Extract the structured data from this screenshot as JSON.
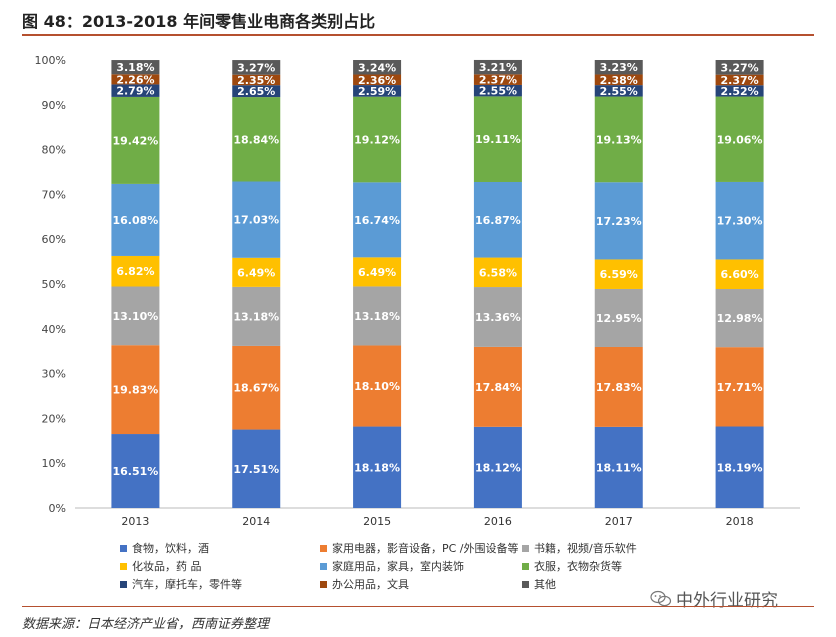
{
  "title": "图 48：2013-2018 年间零售业电商各类别占比",
  "source": "数据来源：日本经济产业省，西南证券整理",
  "watermark": "中外行业研究",
  "chart_data": {
    "type": "bar",
    "stacked": true,
    "categories": [
      "2013",
      "2014",
      "2015",
      "2016",
      "2017",
      "2018"
    ],
    "y_ticks": [
      "0%",
      "10%",
      "20%",
      "30%",
      "40%",
      "50%",
      "60%",
      "70%",
      "80%",
      "90%",
      "100%"
    ],
    "ylim": [
      0,
      100
    ],
    "series": [
      {
        "name": "食物，饮料，酒",
        "color": "#4472c4",
        "label_color": "#ffffff",
        "values": [
          16.51,
          17.51,
          18.18,
          18.12,
          18.11,
          18.19
        ],
        "labels": [
          "16.51%",
          "17.51%",
          "18.18%",
          "18.12%",
          "18.11%",
          "18.19%"
        ]
      },
      {
        "name": "家用电器，影音设备，PC /外围设备等",
        "color": "#ed7d31",
        "label_color": "#ffffff",
        "values": [
          19.83,
          18.67,
          18.1,
          17.84,
          17.83,
          17.71
        ],
        "labels": [
          "19.83%",
          "18.67%",
          "18.10%",
          "17.84%",
          "17.83%",
          "17.71%"
        ]
      },
      {
        "name": "书籍，视频/音乐软件",
        "color": "#a5a5a5",
        "label_color": "#ffffff",
        "values": [
          13.1,
          13.18,
          13.18,
          13.36,
          12.95,
          12.98
        ],
        "labels": [
          "13.10%",
          "13.18%",
          "13.18%",
          "13.36%",
          "12.95%",
          "12.98%"
        ]
      },
      {
        "name": "化妆品，药 品",
        "color": "#ffc000",
        "label_color": "#ffffff",
        "values": [
          6.82,
          6.49,
          6.49,
          6.58,
          6.59,
          6.6
        ],
        "labels": [
          "6.82%",
          "6.49%",
          "6.49%",
          "6.58%",
          "6.59%",
          "6.60%"
        ]
      },
      {
        "name": "家庭用品，家具，室内装饰",
        "color": "#5b9bd5",
        "label_color": "#ffffff",
        "values": [
          16.08,
          17.03,
          16.74,
          16.87,
          17.23,
          17.3
        ],
        "labels": [
          "16.08%",
          "17.03%",
          "16.74%",
          "16.87%",
          "17.23%",
          "17.30%"
        ]
      },
      {
        "name": "衣服，衣物杂货等",
        "color": "#70ad47",
        "label_color": "#ffffff",
        "values": [
          19.42,
          18.84,
          19.12,
          19.11,
          19.13,
          19.06
        ],
        "labels": [
          "19.42%",
          "18.84%",
          "19.12%",
          "19.11%",
          "19.13%",
          "19.06%"
        ]
      },
      {
        "name": "汽车，摩托车，零件等",
        "color": "#264478",
        "label_color": "#ffffff",
        "values": [
          2.79,
          2.65,
          2.59,
          2.55,
          2.55,
          2.52
        ],
        "labels": [
          "2.79%",
          "2.65%",
          "2.59%",
          "2.55%",
          "2.55%",
          "2.52%"
        ]
      },
      {
        "name": "办公用品，文具",
        "color": "#9e480e",
        "label_color": "#ffffff",
        "values": [
          2.26,
          2.35,
          2.36,
          2.37,
          2.38,
          2.37
        ],
        "labels": [
          "2.26%",
          "2.35%",
          "2.36%",
          "2.37%",
          "2.38%",
          "2.37%"
        ]
      },
      {
        "name": "其他",
        "color": "#595959",
        "label_color": "#ffffff",
        "values": [
          3.18,
          3.27,
          3.24,
          3.21,
          3.23,
          3.27
        ],
        "labels": [
          "3.18%",
          "3.27%",
          "3.24%",
          "3.21%",
          "3.23%",
          "3.27%"
        ]
      }
    ],
    "legend_position": "bottom"
  }
}
